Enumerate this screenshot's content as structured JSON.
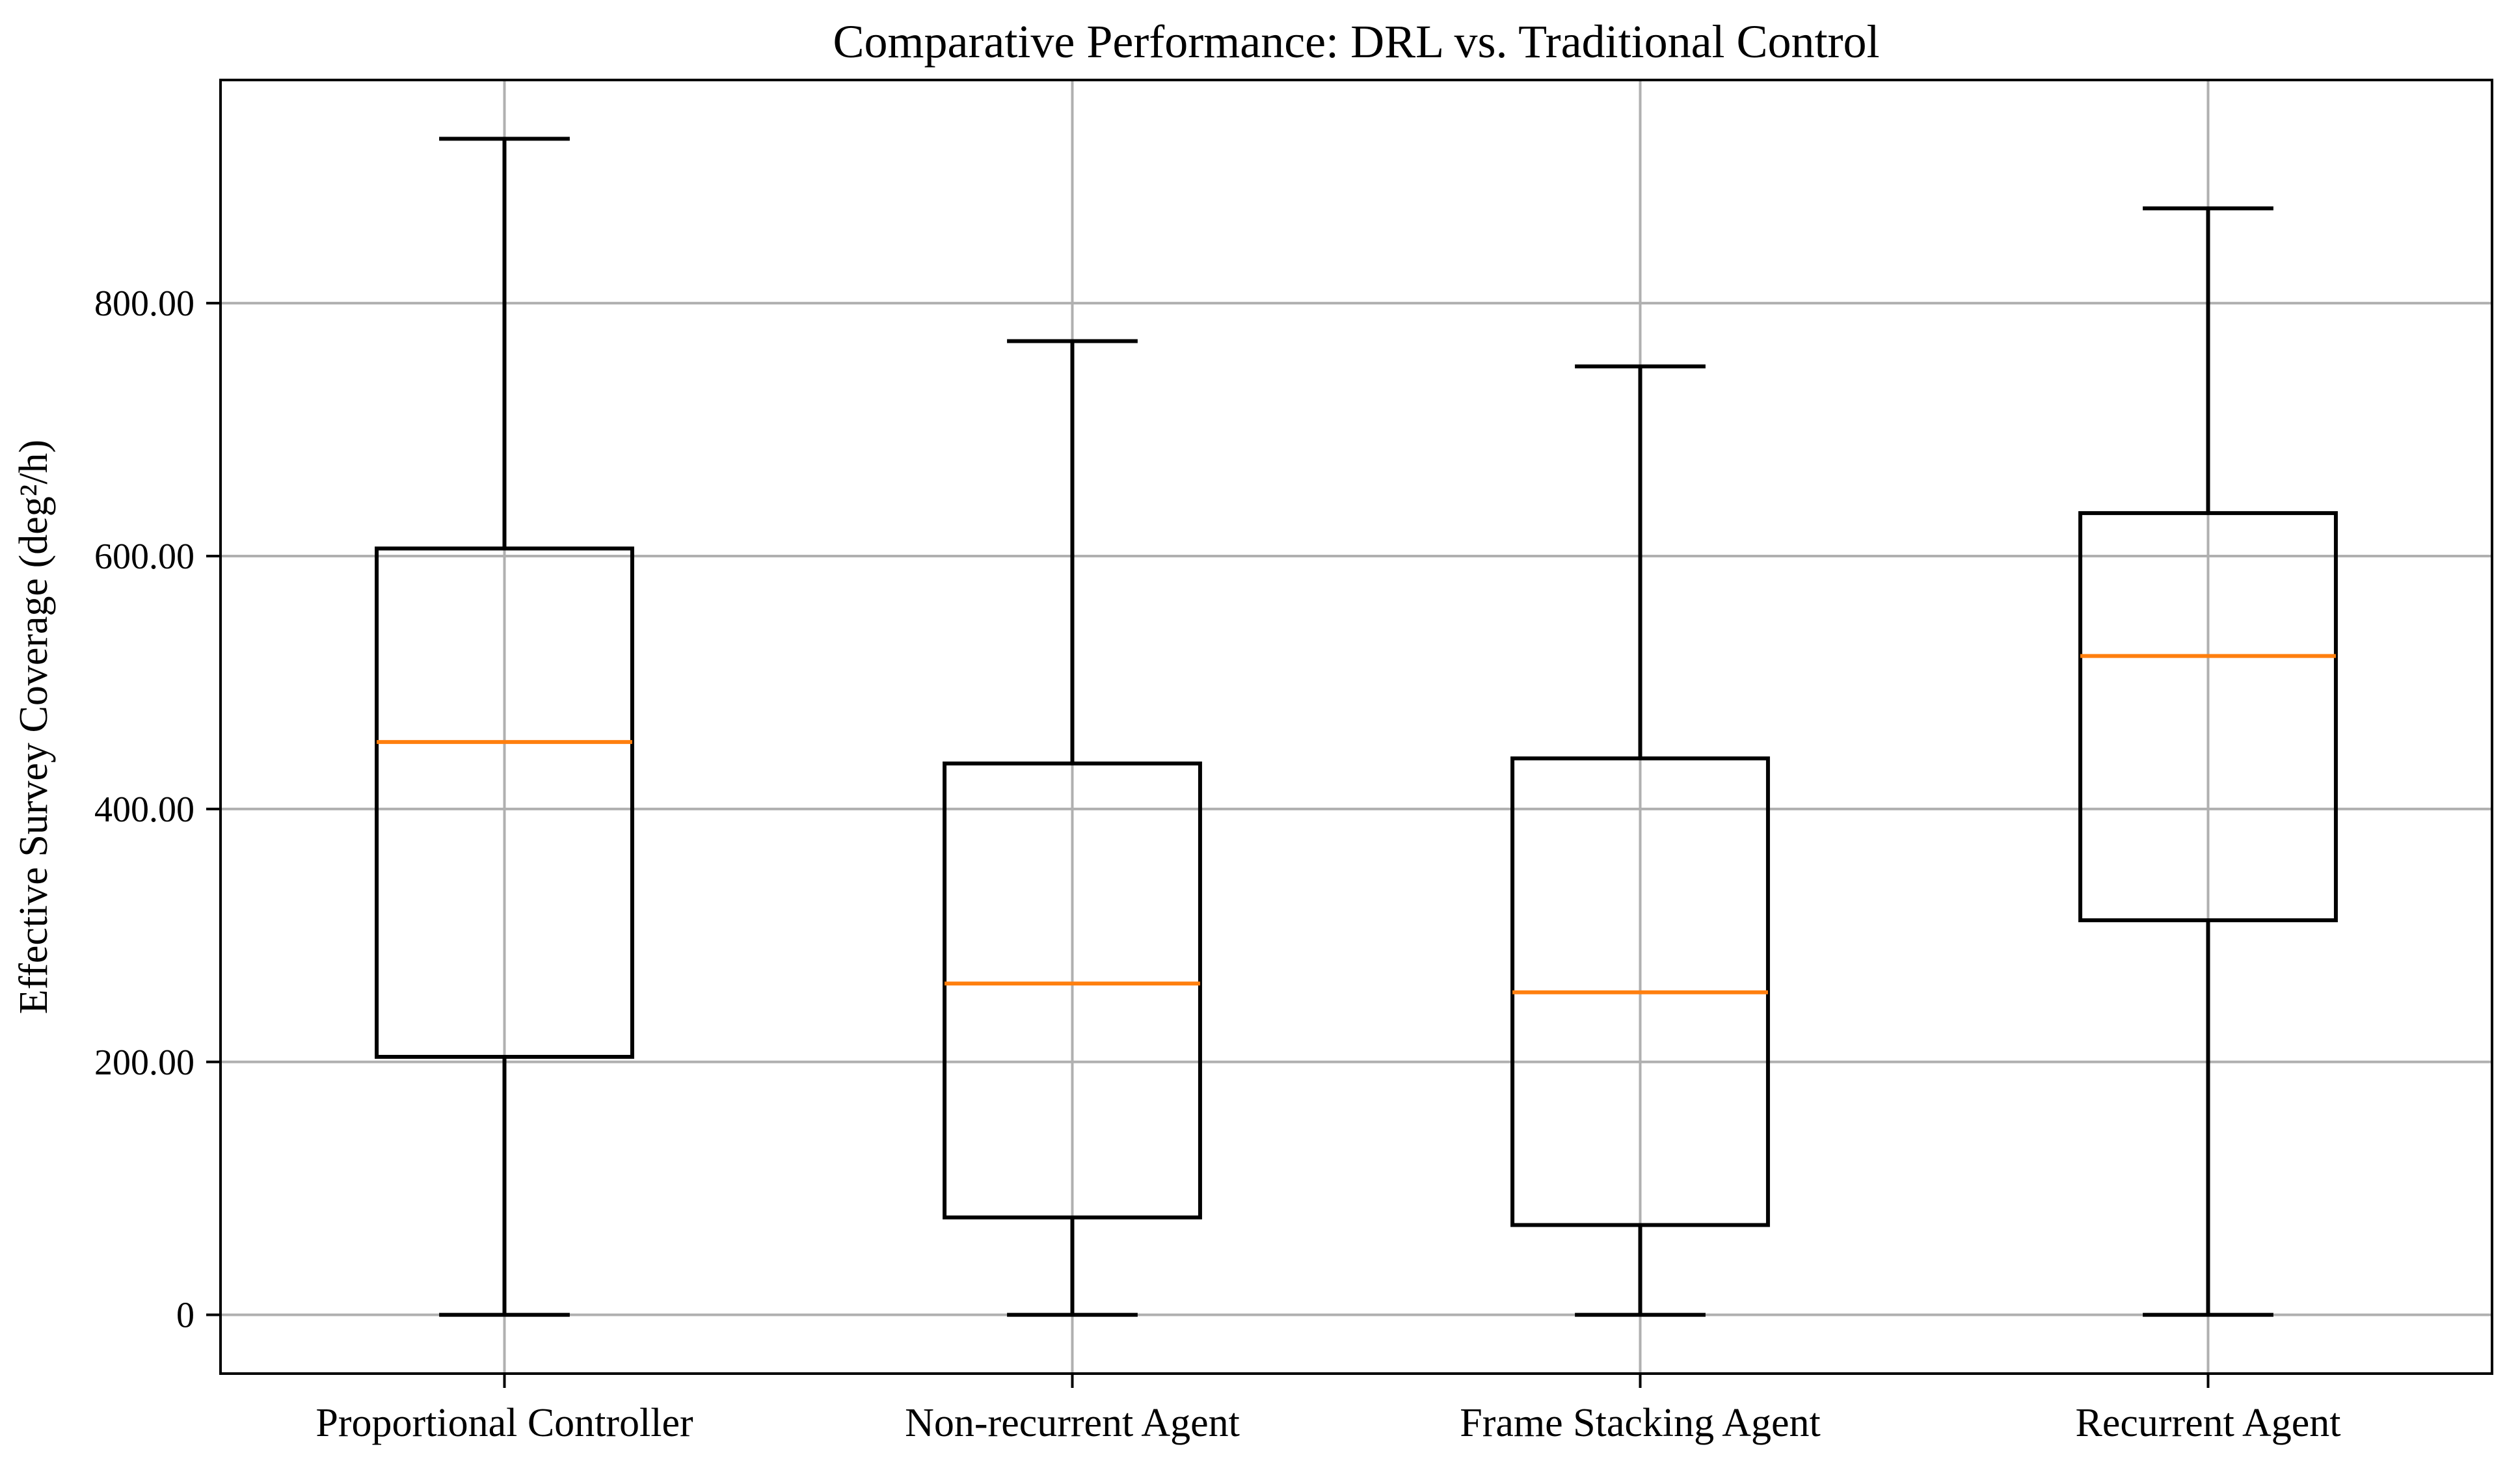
{
  "figure": {
    "title": "Comparative Performance: DRL vs. Traditional Control",
    "y_axis_label": "Effective Survey Coverage (deg²/h)"
  },
  "chart_data": {
    "type": "boxplot",
    "title": "Comparative Performance: DRL vs. Traditional Control",
    "xlabel": "",
    "ylabel": "Effective Survey Coverage (deg²/h)",
    "categories": [
      "Proportional Controller",
      "Non-recurrent Agent",
      "Frame Stacking Agent",
      "Recurrent Agent"
    ],
    "series": [
      {
        "name": "Proportional Controller",
        "whisker_low": 0,
        "q1": 204,
        "median": 453,
        "q3": 606,
        "whisker_high": 930
      },
      {
        "name": "Non-recurrent Agent",
        "whisker_low": 0,
        "q1": 77,
        "median": 262,
        "q3": 436,
        "whisker_high": 770
      },
      {
        "name": "Frame Stacking Agent",
        "whisker_low": 0,
        "q1": 71,
        "median": 255,
        "q3": 440,
        "whisker_high": 750
      },
      {
        "name": "Recurrent Agent",
        "whisker_low": 0,
        "q1": 312,
        "median": 521,
        "q3": 634,
        "whisker_high": 875
      }
    ],
    "ylim": [
      -46.5,
      976.5
    ],
    "xlim": [
      0.5,
      4.5
    ],
    "yticks": {
      "values": [
        0,
        200,
        400,
        600,
        800
      ],
      "labels": [
        "0",
        "200.00",
        "400.00",
        "600.00",
        "800.00"
      ]
    },
    "grid": {
      "x": true,
      "y": true
    },
    "legend_position": "none",
    "colors": {
      "box_edge": "#000000",
      "median": "#ff7f0e",
      "grid": "#b0b0b0",
      "spine": "#000000",
      "background": "#ffffff",
      "text": "#000000"
    },
    "box_width_data_units": 0.45,
    "cap_width_data_units": 0.23
  }
}
